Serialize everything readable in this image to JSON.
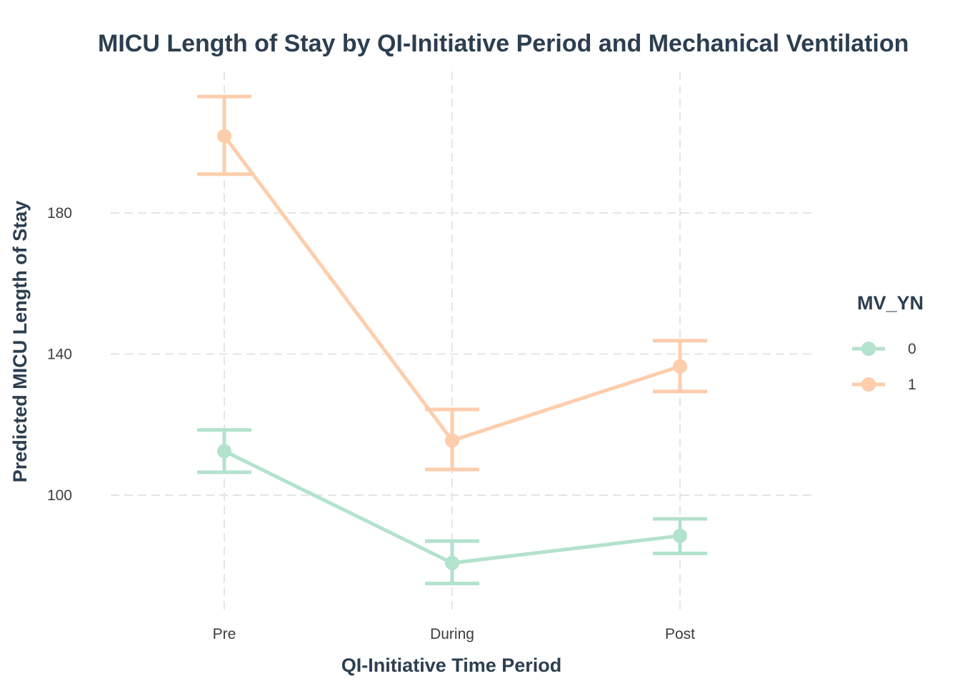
{
  "chart_data": {
    "type": "line",
    "title": "MICU Length of Stay by QI-Initiative Period and Mechanical Ventilation",
    "xlabel": "QI-Initiative Time Period",
    "ylabel": "Predicted MICU Length of Stay",
    "categories": [
      "Pre",
      "During",
      "Post"
    ],
    "ylim": [
      66,
      213
    ],
    "yticks": [
      100,
      140,
      180
    ],
    "grid": true,
    "error_bars": true,
    "legend": {
      "title": "MV_YN",
      "position": "right"
    },
    "series": [
      {
        "name": "0",
        "color": "#b3e2cd",
        "values": [
          112.5,
          80.8,
          88.5
        ],
        "lower": [
          106.5,
          75,
          83.5
        ],
        "upper": [
          118.5,
          87,
          93.3
        ]
      },
      {
        "name": "1",
        "color": "#fdcdac",
        "values": [
          201.8,
          115.5,
          136.5
        ],
        "lower": [
          191,
          107.3,
          129.4
        ],
        "upper": [
          213,
          124.3,
          143.8
        ]
      }
    ]
  }
}
